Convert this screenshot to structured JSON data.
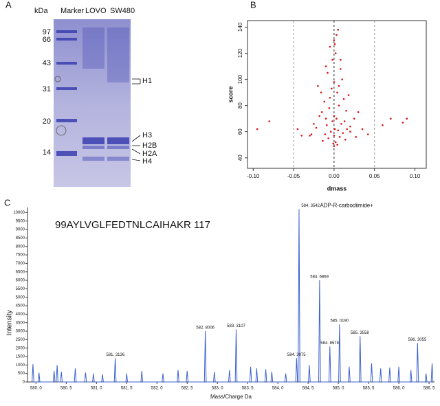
{
  "panel_labels": [
    "A",
    "B",
    "C"
  ],
  "gel": {
    "unit": "kDa",
    "lanes": [
      "Marker",
      "LOVO",
      "SW480"
    ],
    "markers": [
      "97",
      "66",
      "43",
      "31",
      "20",
      "14"
    ],
    "bands": [
      "H1",
      "H3",
      "H2B",
      "H2A",
      "H4"
    ]
  },
  "chart_data": [
    {
      "type": "scatter",
      "x_label": "dmass",
      "y_label": "score",
      "color": "#e01010",
      "x": [
        -0.095,
        -0.08,
        0.06,
        0.07,
        0.085,
        0.09,
        -0.03,
        -0.04,
        -0.02,
        0.02,
        0.03,
        0.035,
        -0.015,
        -0.01,
        0.005,
        0.0,
        -0.005,
        0.002,
        0.008,
        -0.008,
        0.01,
        0.0,
        -0.003,
        0.004,
        0.012,
        -0.012,
        0.006,
        -0.006,
        0.015,
        -0.018,
        0.0,
        0.003,
        -0.002,
        0.009,
        -0.009,
        0.02,
        -0.022,
        0.001,
        0.005,
        -0.004,
        0.011,
        -0.011,
        0.0,
        0.007,
        -0.007,
        0.014,
        -0.014,
        0.002,
        -0.001,
        0.004,
        0.0,
        -0.025,
        0.025,
        0.018,
        -0.016,
        0.008,
        -0.002,
        0.001,
        0.006,
        -0.01,
        0.013,
        -0.005,
        0.016,
        -0.028,
        0.027,
        0.003,
        -0.045,
        0.042
      ],
      "values": [
        62,
        68,
        65,
        70,
        67,
        70,
        57,
        57,
        95,
        60,
        75,
        62,
        75,
        110,
        138,
        130,
        125,
        120,
        115,
        105,
        100,
        98,
        93,
        90,
        85,
        83,
        80,
        78,
        76,
        72,
        72,
        70,
        68,
        66,
        65,
        64,
        63,
        62,
        61,
        60,
        59,
        58,
        57,
        56,
        55,
        54,
        53,
        52,
        51,
        50,
        49,
        66,
        70,
        88,
        90,
        108,
        115,
        127,
        95,
        70,
        68,
        86,
        62,
        58,
        56,
        134,
        62,
        58
      ],
      "xlim": [
        -0.107,
        0.114
      ],
      "ylim": [
        32,
        145
      ],
      "xticks": [
        {
          "value": -0.1,
          "label": "-0.10"
        },
        {
          "value": -0.05,
          "label": "-0.05"
        },
        {
          "value": 0,
          "label": "0.00"
        },
        {
          "value": 0.05,
          "label": "0.05"
        },
        {
          "value": 0.1,
          "label": "0.10"
        }
      ],
      "yticks": [
        40,
        60,
        80,
        100,
        120,
        140
      ],
      "vlines": [
        -0.05,
        0,
        0.05
      ]
    },
    {
      "type": "line",
      "title": "99AYLVGLFEDTNLCAIHAKR 117",
      "x_label": "Mass/Charge  Da",
      "y_label": "Intensity",
      "color": "#3a5fd0",
      "x": [
        579.935,
        579.95,
        579.965,
        580.035,
        580.05,
        580.065,
        580.285,
        580.3,
        580.315,
        580.335,
        580.35,
        580.365,
        580.405,
        580.42,
        580.435,
        580.635,
        580.65,
        580.665,
        580.805,
        580.82,
        580.835,
        580.935,
        580.95,
        580.965,
        581.085,
        581.1,
        581.115,
        581.295,
        581.31,
        581.325,
        581.485,
        581.5,
        581.515,
        581.735,
        581.75,
        581.765,
        582.085,
        582.1,
        582.115,
        582.335,
        582.35,
        582.365,
        582.485,
        582.5,
        582.515,
        582.785,
        582.8,
        582.815,
        582.935,
        582.95,
        582.965,
        583.185,
        583.2,
        583.215,
        583.295,
        583.31,
        583.325,
        583.535,
        583.55,
        583.565,
        583.635,
        583.65,
        583.665,
        583.785,
        583.8,
        583.815,
        583.885,
        583.9,
        583.915,
        584.115,
        584.13,
        584.145,
        584.295,
        584.31,
        584.325,
        584.335,
        584.35,
        584.365,
        584.505,
        584.52,
        584.535,
        584.675,
        584.69,
        584.705,
        584.845,
        584.86,
        584.875,
        585.005,
        585.02,
        585.035,
        585.165,
        585.18,
        585.195,
        585.345,
        585.36,
        585.375,
        585.535,
        585.55,
        585.565,
        585.685,
        585.7,
        585.715,
        585.835,
        585.85,
        585.865,
        585.985,
        586.0,
        586.015,
        586.185,
        586.2,
        586.215,
        586.295,
        586.31,
        586.325,
        586.435,
        586.45,
        586.465,
        586.535,
        586.55,
        586.565
      ],
      "values": [
        0,
        1050,
        0,
        0,
        550,
        0,
        0,
        650,
        0,
        0,
        1000,
        0,
        0,
        600,
        0,
        0,
        800,
        0,
        0,
        550,
        0,
        0,
        500,
        0,
        0,
        450,
        0,
        0,
        1400,
        0,
        0,
        500,
        0,
        0,
        650,
        0,
        0,
        500,
        0,
        0,
        700,
        0,
        0,
        650,
        0,
        0,
        3000,
        0,
        0,
        600,
        0,
        0,
        700,
        0,
        0,
        3100,
        0,
        0,
        900,
        0,
        0,
        800,
        0,
        0,
        750,
        0,
        0,
        600,
        0,
        0,
        500,
        0,
        0,
        1400,
        0,
        0,
        10200,
        0,
        0,
        1000,
        0,
        0,
        6000,
        0,
        0,
        2100,
        0,
        0,
        3400,
        0,
        0,
        900,
        0,
        0,
        2700,
        0,
        0,
        1100,
        0,
        0,
        800,
        0,
        0,
        850,
        0,
        0,
        900,
        0,
        0,
        700,
        0,
        0,
        2300,
        0,
        0,
        500,
        0,
        0,
        1100,
        0
      ],
      "xlim": [
        579.86,
        586.59
      ],
      "ylim": [
        0,
        10300
      ],
      "xticks": [
        {
          "value": 580,
          "label": "580. 0"
        },
        {
          "value": 580.5,
          "label": "580. 5"
        },
        {
          "value": 581,
          "label": "581. 0"
        },
        {
          "value": 581.5,
          "label": "581. 5"
        },
        {
          "value": 582,
          "label": "582. 0"
        },
        {
          "value": 582.5,
          "label": "582. 5"
        },
        {
          "value": 583,
          "label": "583. 0"
        },
        {
          "value": 583.5,
          "label": "583. 5"
        },
        {
          "value": 584,
          "label": "584. 0"
        },
        {
          "value": 584.5,
          "label": "584. 5"
        },
        {
          "value": 585,
          "label": "585. 0"
        },
        {
          "value": 585.5,
          "label": "585. 5"
        },
        {
          "value": 586,
          "label": "586. 0"
        },
        {
          "value": 586.5,
          "label": "586. 5"
        }
      ],
      "yticks": [
        0,
        500,
        1000,
        1500,
        2000,
        2500,
        3000,
        3500,
        4000,
        4500,
        5000,
        5500,
        6000,
        6500,
        7000,
        7500,
        8000,
        8500,
        9000,
        9500,
        10000
      ],
      "annotations": [
        {
          "text": "581. 3136",
          "x": 581.3136,
          "y": 1400
        },
        {
          "text": "582. 8006",
          "x": 582.8006,
          "y": 3000
        },
        {
          "text": "583. 3107",
          "x": 583.3107,
          "y": 3100
        },
        {
          "text": "584. 3075",
          "x": 584.3075,
          "y": 1400
        },
        {
          "text": "584. 3542",
          "x": 584.3542,
          "y": 10200
        },
        {
          "text": "584. 6869",
          "x": 584.6869,
          "y": 6000
        },
        {
          "text": "584. 8578",
          "x": 584.8578,
          "y": 2100
        },
        {
          "text": "585. 0190",
          "x": 585.019,
          "y": 3400
        },
        {
          "text": "585. 3558",
          "x": 585.3558,
          "y": 2700
        },
        {
          "text": "586. 3055",
          "x": 586.3055,
          "y": 2300
        }
      ],
      "peak_note": "ADP-R-carbodiimide+"
    }
  ]
}
